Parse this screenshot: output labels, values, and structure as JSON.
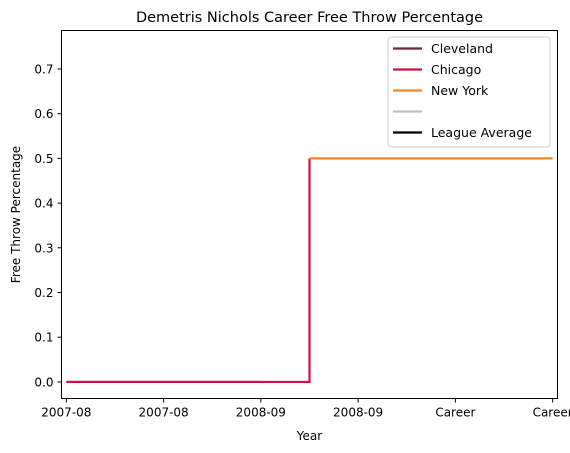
{
  "chart_data": {
    "type": "line",
    "title": "Demetris Nichols Career Free Throw Percentage",
    "xlabel": "Year",
    "ylabel": "Free Throw Percentage",
    "x_ticks": [
      "2007-08",
      "2007-08",
      "2008-09",
      "2008-09",
      "Career",
      "Career"
    ],
    "xlim": [
      -0.05,
      5.05
    ],
    "ylim": [
      -0.037,
      0.786
    ],
    "y_ticks": [
      0.0,
      0.1,
      0.2,
      0.3,
      0.4,
      0.5,
      0.6,
      0.7
    ],
    "y_tick_labels": [
      "0.0",
      "0.1",
      "0.2",
      "0.3",
      "0.4",
      "0.5",
      "0.6",
      "0.7"
    ],
    "grid": false,
    "legend_position": "top-right",
    "series": [
      {
        "name": "Cleveland",
        "color": "#6f263d",
        "step": true,
        "x": [
          0,
          2
        ],
        "y": [
          0.0,
          0.0
        ]
      },
      {
        "name": "Chicago",
        "color": "#ce1141",
        "step": true,
        "x": [
          0,
          1,
          2,
          2.5
        ],
        "y": [
          0.0,
          0.0,
          0.0,
          0.5
        ]
      },
      {
        "name": "New York",
        "color": "#f58426",
        "step": true,
        "x": [
          2.5,
          3,
          4,
          5
        ],
        "y": [
          0.5,
          0.5,
          0.5,
          0.5
        ]
      },
      {
        "name": "",
        "color": "#bec0c2",
        "step": true,
        "x": [],
        "y": []
      },
      {
        "name": "League Average",
        "color": "#000000",
        "step": true,
        "x": [],
        "y": []
      }
    ]
  }
}
